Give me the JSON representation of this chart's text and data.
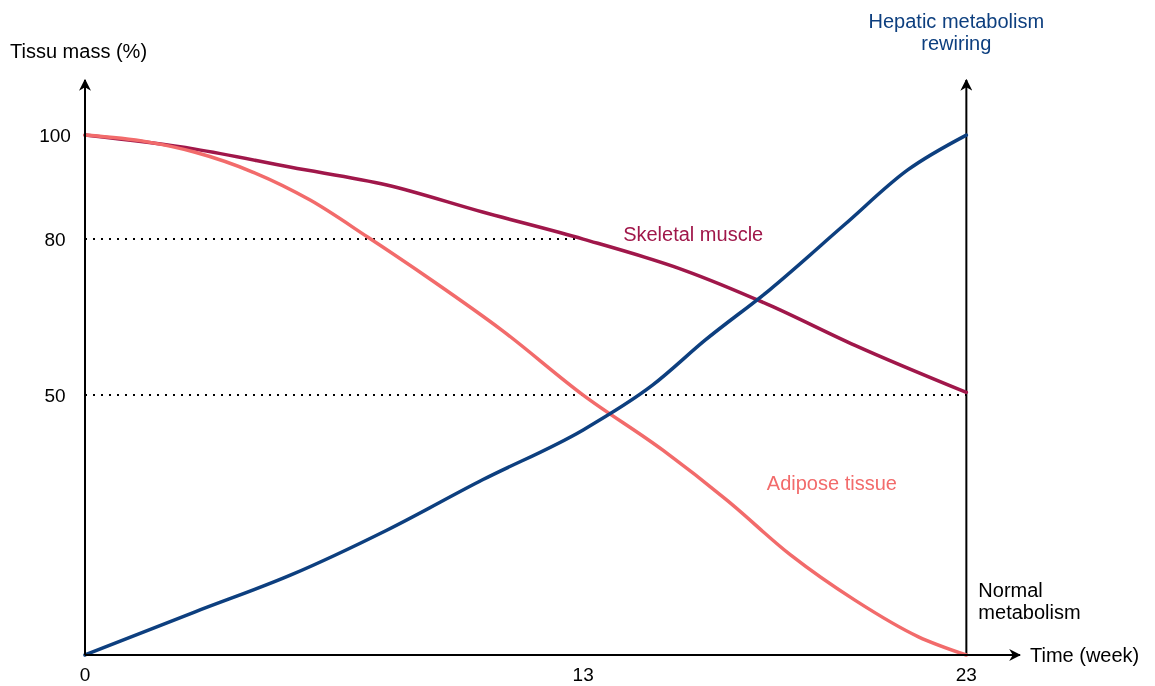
{
  "chart_data": {
    "type": "line",
    "ylabel": "Tissu mass (%)",
    "xlabel": "Time (week)",
    "y2label": "Hepatic metabolism rewiring",
    "xlim": [
      0,
      24.4
    ],
    "xticks": [
      0,
      13,
      23
    ],
    "ylim": [
      0,
      110.6
    ],
    "yticks": [
      50,
      80,
      100
    ],
    "marker": "none",
    "line_style": "solid",
    "grid": false,
    "ref_lines": [
      {
        "axis": "x",
        "value": 23,
        "line_style": "solid",
        "color": "#000000"
      },
      {
        "axis": "y",
        "value": 80,
        "line_style": "dotted",
        "color": "#000000"
      },
      {
        "axis": "y",
        "value": 50,
        "line_style": "dotted",
        "color": "#000000"
      }
    ],
    "annotations": [
      "Normal metabolism"
    ],
    "series": [
      {
        "name": "Skeletal muscle",
        "color": "#a0174a",
        "x": [
          0,
          2.875,
          5.375,
          7.875,
          10.375,
          13,
          15.64,
          17.86,
          20.08,
          23
        ],
        "values": [
          100,
          97.3,
          93.8,
          90.4,
          85.2,
          80,
          74,
          67.3,
          59.6,
          50.5
        ]
      },
      {
        "name": "Adipose tissue",
        "color": "#f26b6b",
        "x": [
          0,
          1.625,
          2.875,
          4.375,
          5.875,
          7.375,
          9.125,
          10.875,
          13,
          15.08,
          16.75,
          18.42,
          20.08,
          21.75,
          23
        ],
        "values": [
          100,
          98.7,
          96.7,
          92.9,
          87.5,
          80.4,
          71.7,
          62.5,
          50,
          39.4,
          29.8,
          19.2,
          10.6,
          3.5,
          0
        ]
      },
      {
        "color": "#0d3f7f",
        "x": [
          0,
          2.875,
          5.375,
          7.875,
          10.375,
          13,
          14.81,
          16.19,
          17.86,
          19.81,
          21.47,
          23
        ],
        "values": [
          0,
          8.3,
          15.4,
          24,
          33.7,
          43.3,
          51.9,
          60.6,
          70.2,
          82.7,
          93.3,
          100
        ]
      }
    ]
  }
}
